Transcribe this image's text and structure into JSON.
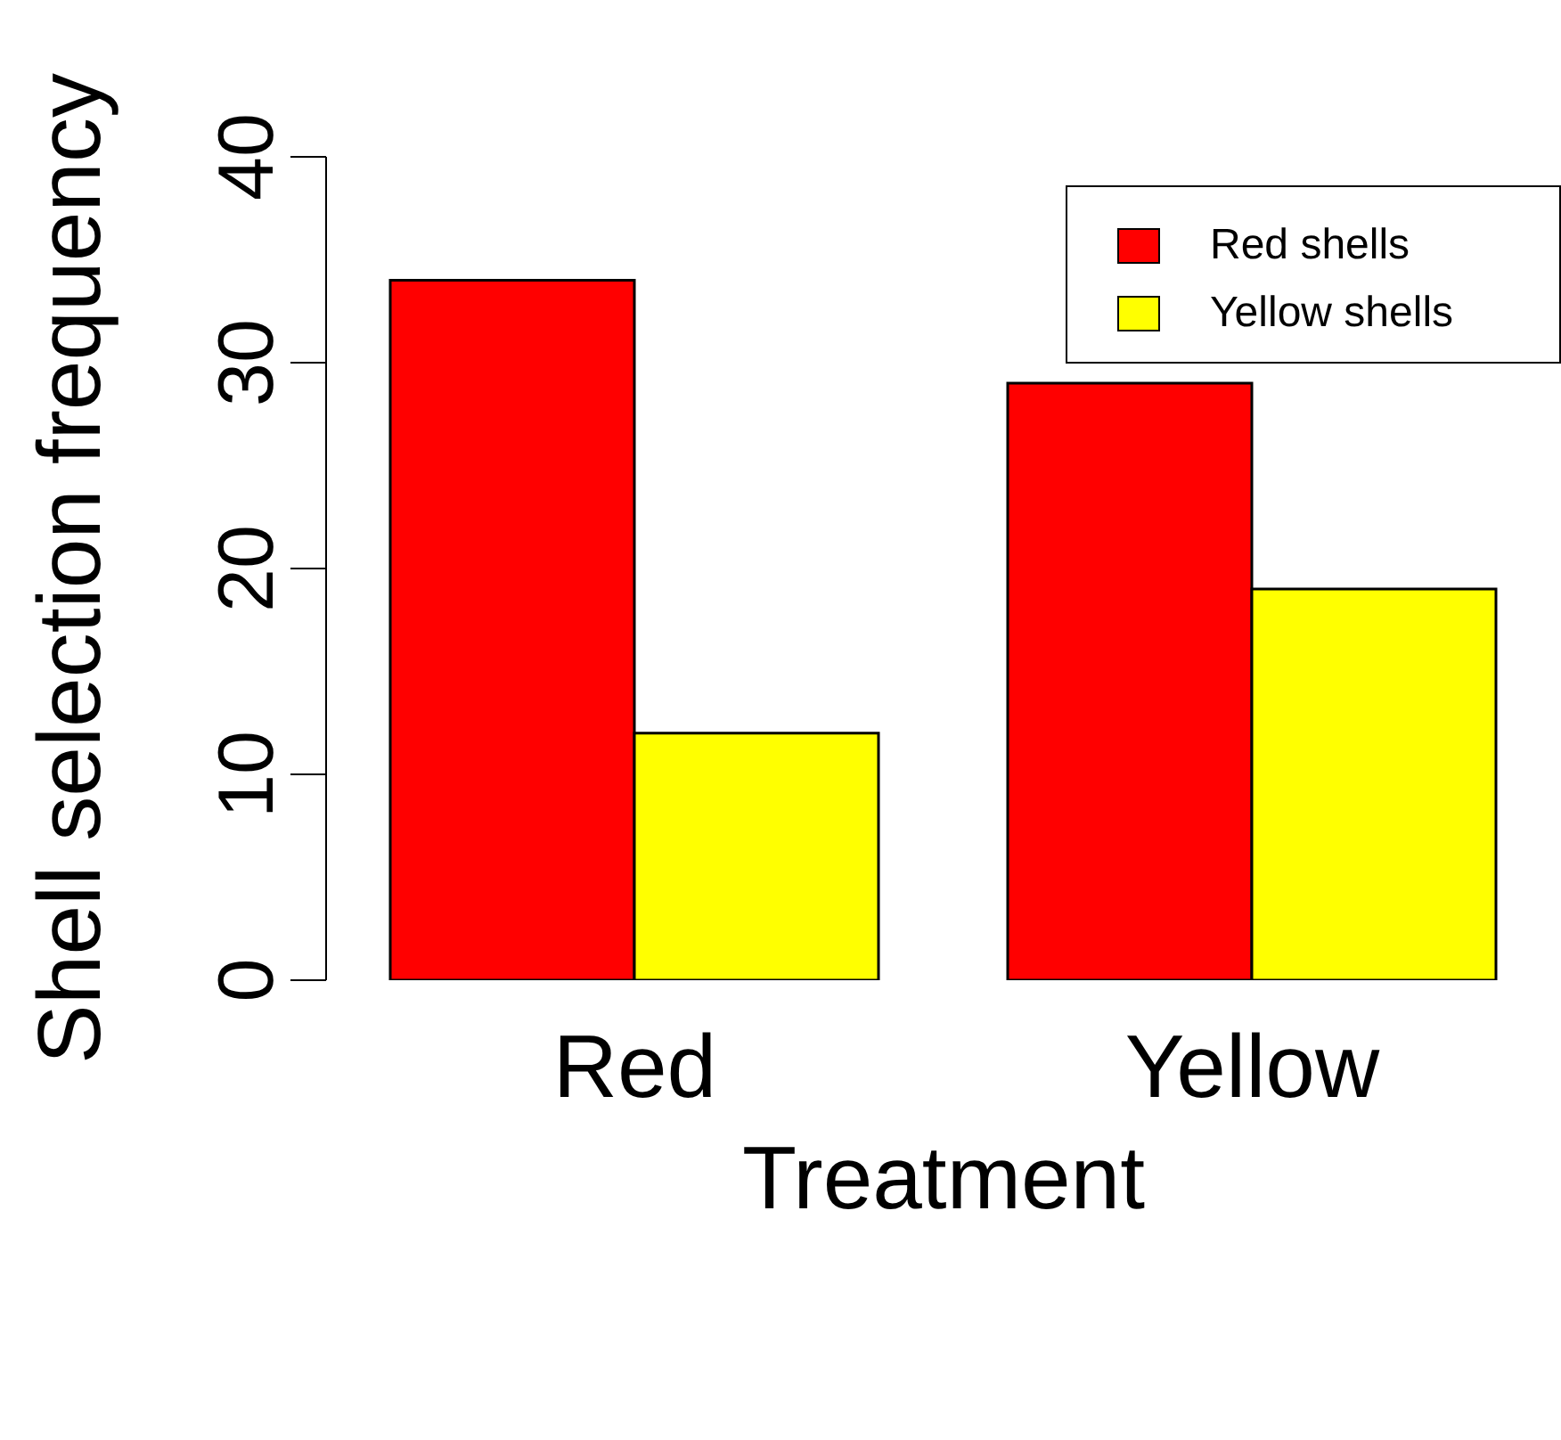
{
  "chart_data": {
    "type": "bar",
    "xlabel": "Treatment",
    "ylabel": "Shell selection frequency",
    "categories": [
      "Red",
      "Yellow"
    ],
    "series": [
      {
        "name": "Red shells",
        "color": "#ff0000",
        "values": [
          34,
          29
        ]
      },
      {
        "name": "Yellow shells",
        "color": "#ffff00",
        "values": [
          12,
          19
        ]
      }
    ],
    "ylim": [
      0,
      40
    ],
    "yticks": [
      0,
      10,
      20,
      30,
      40
    ],
    "grid": false,
    "legend": "top right"
  }
}
